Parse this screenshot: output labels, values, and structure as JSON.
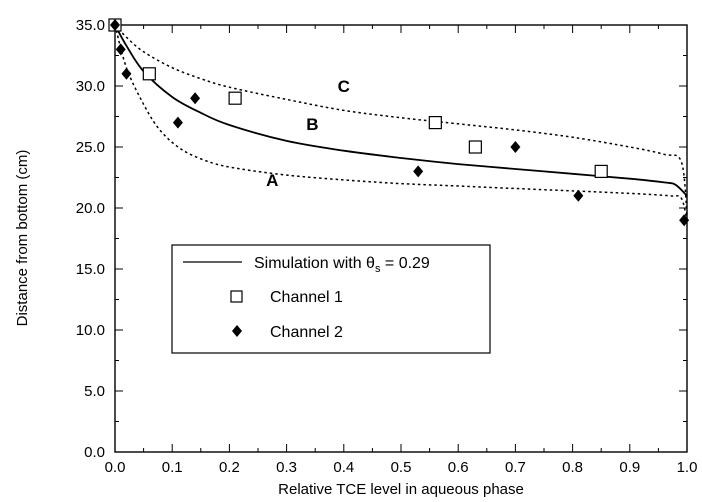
{
  "chart_data": {
    "type": "scatter",
    "xlabel": "Relative TCE level in aqueous phase",
    "ylabel": "Distance from bottom  (cm)",
    "xlim": [
      0.0,
      1.0
    ],
    "ylim": [
      0.0,
      35.0
    ],
    "x_ticks": [
      "0.0",
      "0.1",
      "0.2",
      "0.3",
      "0.4",
      "0.5",
      "0.6",
      "0.7",
      "0.8",
      "0.9",
      "1.0"
    ],
    "y_ticks": [
      "0.0",
      "5.0",
      "10.0",
      "15.0",
      "20.0",
      "25.0",
      "30.0",
      "35.0"
    ],
    "grid": false,
    "legend_position": "lower-left",
    "legend": {
      "simulation_prefix": "Simulation with  θ",
      "simulation_subscript": "s",
      "simulation_suffix": " = 0.29",
      "channel1": "Channel 1",
      "channel2": "Channel 2"
    },
    "curve_labels": [
      "A",
      "B",
      "C"
    ],
    "curves": [
      {
        "label": "A",
        "style": "dotted",
        "x": [
          0.0,
          0.02,
          0.05,
          0.08,
          0.12,
          0.17,
          0.22,
          0.3,
          0.4,
          0.5,
          0.6,
          0.7,
          0.8,
          0.9,
          0.97,
          0.99,
          1.0
        ],
        "y": [
          35.0,
          31.5,
          28.5,
          26.3,
          24.7,
          23.7,
          23.2,
          22.7,
          22.3,
          22.0,
          21.8,
          21.6,
          21.4,
          21.2,
          21.0,
          20.8,
          19.0
        ]
      },
      {
        "label": "B",
        "style": "solid",
        "x": [
          0.0,
          0.02,
          0.05,
          0.1,
          0.15,
          0.2,
          0.3,
          0.4,
          0.5,
          0.6,
          0.7,
          0.8,
          0.9,
          0.96,
          0.98,
          1.0
        ],
        "y": [
          35.0,
          33.3,
          31.2,
          29.1,
          27.8,
          26.8,
          25.5,
          24.7,
          24.1,
          23.6,
          23.2,
          22.8,
          22.4,
          22.1,
          21.9,
          21.0
        ]
      },
      {
        "label": "C",
        "style": "dotted",
        "x": [
          0.0,
          0.02,
          0.05,
          0.1,
          0.15,
          0.2,
          0.3,
          0.4,
          0.5,
          0.6,
          0.7,
          0.8,
          0.9,
          0.96,
          0.99,
          1.0
        ],
        "y": [
          35.0,
          34.0,
          32.8,
          31.5,
          30.6,
          29.9,
          28.9,
          28.0,
          27.4,
          26.9,
          26.4,
          25.8,
          25.0,
          24.4,
          23.8,
          19.5
        ]
      }
    ],
    "series": [
      {
        "name": "Channel 1",
        "marker": "open-square",
        "x": [
          0.0,
          0.06,
          0.21,
          0.56,
          0.63,
          0.85
        ],
        "y": [
          35.0,
          31.0,
          29.0,
          27.0,
          25.0,
          23.0
        ]
      },
      {
        "name": "Channel 2",
        "marker": "filled-diamond",
        "x": [
          0.0,
          0.01,
          0.02,
          0.11,
          0.14,
          0.53,
          0.7,
          0.81,
          0.995
        ],
        "y": [
          35.0,
          33.0,
          31.0,
          27.0,
          29.0,
          23.0,
          25.0,
          21.0,
          19.0
        ]
      }
    ]
  }
}
